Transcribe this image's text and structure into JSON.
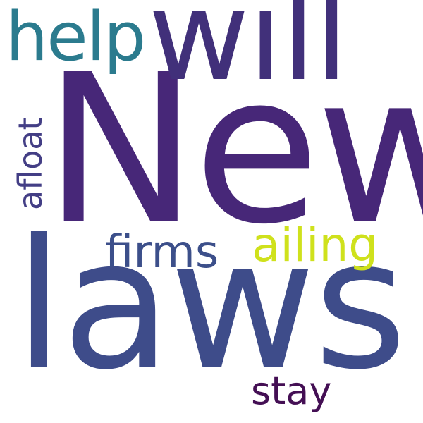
{
  "cloud": {
    "background": "#ffffff",
    "words": {
      "new": {
        "text": "New",
        "color": "#472778"
      },
      "laws": {
        "text": "laws",
        "color": "#3e4c8a"
      },
      "will": {
        "text": "will",
        "color": "#41307a"
      },
      "help": {
        "text": "help",
        "color": "#2b7b8e"
      },
      "ailing": {
        "text": "ailing",
        "color": "#cfe11c"
      },
      "firms": {
        "text": "firms",
        "color": "#3c4f8a"
      },
      "afloat": {
        "text": "afloat",
        "color": "#433e85"
      },
      "stay": {
        "text": "stay",
        "color": "#440f54"
      }
    }
  }
}
